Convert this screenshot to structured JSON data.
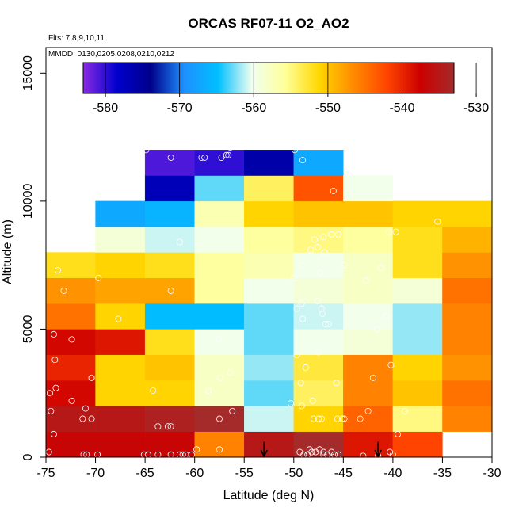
{
  "chart_data": {
    "type": "heatmap",
    "title": "ORCAS RF07-11 O2_AO2",
    "flights_note": "Flts: 7,8,9,10,11",
    "dates_note": "MMDD: 0130,0205,0208,0210,0212",
    "xlabel": "Latitude (deg N)",
    "ylabel": "Altitude (m)",
    "xlim": [
      -75,
      -30
    ],
    "ylim": [
      0,
      16000
    ],
    "xticks": [
      "-75",
      "-70",
      "-65",
      "-60",
      "-55",
      "-50",
      "-45",
      "-40",
      "-35",
      "-30"
    ],
    "yticks": [
      "0",
      "5000",
      "10000",
      "15000"
    ],
    "colorbar": {
      "min": -583,
      "max": -533,
      "ticks": [
        "-580",
        "-570",
        "-560",
        "-550",
        "-540",
        "-530"
      ],
      "colors": [
        "#8a2be2",
        "#0000cd",
        "#00008b",
        "#1e90ff",
        "#00bfff",
        "#f0fff0",
        "#ffff99",
        "#ffd700",
        "#ff8c00",
        "#ff4500",
        "#cc0000",
        "#a52a2a"
      ]
    },
    "cell_width_deg": 5,
    "cell_height_m": 1000,
    "cells": [
      {
        "lat": -75,
        "alt": 0,
        "value": -537
      },
      {
        "lat": -70,
        "alt": 0,
        "value": -537
      },
      {
        "lat": -65,
        "alt": 0,
        "value": -537
      },
      {
        "lat": -60,
        "alt": 0,
        "value": -546
      },
      {
        "lat": -55,
        "alt": 0,
        "value": -535
      },
      {
        "lat": -50,
        "alt": 0,
        "value": -530
      },
      {
        "lat": -45,
        "alt": 0,
        "value": -539
      },
      {
        "lat": -40,
        "alt": 0,
        "value": -542
      },
      {
        "lat": -75,
        "alt": 1000,
        "value": -535
      },
      {
        "lat": -70,
        "alt": 1000,
        "value": -535
      },
      {
        "lat": -65,
        "alt": 1000,
        "value": -534
      },
      {
        "lat": -60,
        "alt": 1000,
        "value": -531
      },
      {
        "lat": -55,
        "alt": 1000,
        "value": -561
      },
      {
        "lat": -50,
        "alt": 1000,
        "value": -551
      },
      {
        "lat": -45,
        "alt": 1000,
        "value": -544
      },
      {
        "lat": -40,
        "alt": 1000,
        "value": -555
      },
      {
        "lat": -35,
        "alt": 1000,
        "value": -546
      },
      {
        "lat": -75,
        "alt": 2000,
        "value": -538
      },
      {
        "lat": -70,
        "alt": 2000,
        "value": -551
      },
      {
        "lat": -65,
        "alt": 2000,
        "value": -551
      },
      {
        "lat": -60,
        "alt": 2000,
        "value": -558
      },
      {
        "lat": -55,
        "alt": 2000,
        "value": -563
      },
      {
        "lat": -50,
        "alt": 2000,
        "value": -554
      },
      {
        "lat": -45,
        "alt": 2000,
        "value": -546
      },
      {
        "lat": -40,
        "alt": 2000,
        "value": -550
      },
      {
        "lat": -35,
        "alt": 2000,
        "value": -545
      },
      {
        "lat": -75,
        "alt": 3000,
        "value": -540
      },
      {
        "lat": -70,
        "alt": 3000,
        "value": -551
      },
      {
        "lat": -65,
        "alt": 3000,
        "value": -550
      },
      {
        "lat": -60,
        "alt": 3000,
        "value": -558
      },
      {
        "lat": -55,
        "alt": 3000,
        "value": -562
      },
      {
        "lat": -50,
        "alt": 3000,
        "value": -553
      },
      {
        "lat": -45,
        "alt": 3000,
        "value": -546
      },
      {
        "lat": -40,
        "alt": 3000,
        "value": -551
      },
      {
        "lat": -35,
        "alt": 3000,
        "value": -547
      },
      {
        "lat": -75,
        "alt": 4000,
        "value": -538
      },
      {
        "lat": -70,
        "alt": 4000,
        "value": -539
      },
      {
        "lat": -65,
        "alt": 4000,
        "value": -552
      },
      {
        "lat": -60,
        "alt": 4000,
        "value": -560
      },
      {
        "lat": -55,
        "alt": 4000,
        "value": -563
      },
      {
        "lat": -50,
        "alt": 4000,
        "value": -560
      },
      {
        "lat": -45,
        "alt": 4000,
        "value": -559
      },
      {
        "lat": -40,
        "alt": 4000,
        "value": -562
      },
      {
        "lat": -35,
        "alt": 4000,
        "value": -546
      },
      {
        "lat": -75,
        "alt": 5000,
        "value": -545
      },
      {
        "lat": -70,
        "alt": 5000,
        "value": -551
      },
      {
        "lat": -65,
        "alt": 5000,
        "value": -565
      },
      {
        "lat": -60,
        "alt": 5000,
        "value": -565
      },
      {
        "lat": -55,
        "alt": 5000,
        "value": -563
      },
      {
        "lat": -50,
        "alt": 5000,
        "value": -561
      },
      {
        "lat": -45,
        "alt": 5000,
        "value": -560
      },
      {
        "lat": -40,
        "alt": 5000,
        "value": -562
      },
      {
        "lat": -35,
        "alt": 5000,
        "value": -546
      },
      {
        "lat": -75,
        "alt": 6000,
        "value": -547
      },
      {
        "lat": -70,
        "alt": 6000,
        "value": -548
      },
      {
        "lat": -65,
        "alt": 6000,
        "value": -548
      },
      {
        "lat": -60,
        "alt": 6000,
        "value": -556
      },
      {
        "lat": -55,
        "alt": 6000,
        "value": -560
      },
      {
        "lat": -50,
        "alt": 6000,
        "value": -559
      },
      {
        "lat": -45,
        "alt": 6000,
        "value": -558
      },
      {
        "lat": -40,
        "alt": 6000,
        "value": -559
      },
      {
        "lat": -35,
        "alt": 6000,
        "value": -545
      },
      {
        "lat": -75,
        "alt": 7000,
        "value": -552
      },
      {
        "lat": -70,
        "alt": 7000,
        "value": -551
      },
      {
        "lat": -65,
        "alt": 7000,
        "value": -552
      },
      {
        "lat": -60,
        "alt": 7000,
        "value": -556
      },
      {
        "lat": -55,
        "alt": 7000,
        "value": -557
      },
      {
        "lat": -50,
        "alt": 7000,
        "value": -560
      },
      {
        "lat": -45,
        "alt": 7000,
        "value": -558
      },
      {
        "lat": -40,
        "alt": 7000,
        "value": -552
      },
      {
        "lat": -35,
        "alt": 7000,
        "value": -547
      },
      {
        "lat": -70,
        "alt": 8000,
        "value": -559
      },
      {
        "lat": -65,
        "alt": 8000,
        "value": -561
      },
      {
        "lat": -60,
        "alt": 8000,
        "value": -560
      },
      {
        "lat": -55,
        "alt": 8000,
        "value": -556
      },
      {
        "lat": -50,
        "alt": 8000,
        "value": -555
      },
      {
        "lat": -45,
        "alt": 8000,
        "value": -556
      },
      {
        "lat": -40,
        "alt": 8000,
        "value": -552
      },
      {
        "lat": -35,
        "alt": 8000,
        "value": -549
      },
      {
        "lat": -70,
        "alt": 9000,
        "value": -567
      },
      {
        "lat": -65,
        "alt": 9000,
        "value": -566
      },
      {
        "lat": -60,
        "alt": 9000,
        "value": -557
      },
      {
        "lat": -55,
        "alt": 9000,
        "value": -551
      },
      {
        "lat": -50,
        "alt": 9000,
        "value": -550
      },
      {
        "lat": -45,
        "alt": 9000,
        "value": -550
      },
      {
        "lat": -40,
        "alt": 9000,
        "value": -551
      },
      {
        "lat": -35,
        "alt": 9000,
        "value": -551
      },
      {
        "lat": -65,
        "alt": 10000,
        "value": -577
      },
      {
        "lat": -60,
        "alt": 10000,
        "value": -563
      },
      {
        "lat": -55,
        "alt": 10000,
        "value": -554
      },
      {
        "lat": -50,
        "alt": 10000,
        "value": -543
      },
      {
        "lat": -45,
        "alt": 10000,
        "value": -560
      },
      {
        "lat": -65,
        "alt": 11000,
        "value": -581
      },
      {
        "lat": -60,
        "alt": 11000,
        "value": -580
      },
      {
        "lat": -55,
        "alt": 11000,
        "value": -576
      },
      {
        "lat": -50,
        "alt": 11000,
        "value": -567
      }
    ],
    "points": [
      {
        "lat": -74.7,
        "alt": 200
      },
      {
        "lat": -74.2,
        "alt": 900
      },
      {
        "lat": -74.5,
        "alt": 1800
      },
      {
        "lat": -74.6,
        "alt": 2500
      },
      {
        "lat": -74.0,
        "alt": 2700
      },
      {
        "lat": -72.4,
        "alt": 2200
      },
      {
        "lat": -71.3,
        "alt": 1500
      },
      {
        "lat": -70.4,
        "alt": 1500
      },
      {
        "lat": -71.0,
        "alt": 1900
      },
      {
        "lat": -70.4,
        "alt": 3100
      },
      {
        "lat": -71.2,
        "alt": 100
      },
      {
        "lat": -70.9,
        "alt": 100
      },
      {
        "lat": -69.8,
        "alt": 100
      },
      {
        "lat": -74.1,
        "alt": 3800
      },
      {
        "lat": -72.4,
        "alt": 4600
      },
      {
        "lat": -74.2,
        "alt": 4800
      },
      {
        "lat": -73.8,
        "alt": 7300
      },
      {
        "lat": -73.2,
        "alt": 6500
      },
      {
        "lat": -69.7,
        "alt": 7000
      },
      {
        "lat": -67.7,
        "alt": 5400
      },
      {
        "lat": -64.2,
        "alt": 2600
      },
      {
        "lat": -63.7,
        "alt": 1200
      },
      {
        "lat": -62.7,
        "alt": 1200
      },
      {
        "lat": -62.4,
        "alt": 1200
      },
      {
        "lat": -65.1,
        "alt": 100
      },
      {
        "lat": -64.7,
        "alt": 100
      },
      {
        "lat": -63.7,
        "alt": 100
      },
      {
        "lat": -62.4,
        "alt": 100
      },
      {
        "lat": -61.5,
        "alt": 100
      },
      {
        "lat": -61.2,
        "alt": 100
      },
      {
        "lat": -60.9,
        "alt": 100
      },
      {
        "lat": -60.3,
        "alt": 100
      },
      {
        "lat": -59.8,
        "alt": 300
      },
      {
        "lat": -57.5,
        "alt": 300
      },
      {
        "lat": -57.5,
        "alt": 1500
      },
      {
        "lat": -56.2,
        "alt": 1800
      },
      {
        "lat": -58.6,
        "alt": 2600
      },
      {
        "lat": -57.4,
        "alt": 3100
      },
      {
        "lat": -56.4,
        "alt": 3300
      },
      {
        "lat": -57.6,
        "alt": 4600
      },
      {
        "lat": -62.4,
        "alt": 6500
      },
      {
        "lat": -61.5,
        "alt": 8400
      },
      {
        "lat": -64.9,
        "alt": 12000
      },
      {
        "lat": -62.4,
        "alt": 11700
      },
      {
        "lat": -59.3,
        "alt": 11700
      },
      {
        "lat": -59.0,
        "alt": 11700
      },
      {
        "lat": -57.3,
        "alt": 11700
      },
      {
        "lat": -56.8,
        "alt": 11800
      },
      {
        "lat": -56.6,
        "alt": 11800
      },
      {
        "lat": -56.4,
        "alt": 12100
      },
      {
        "lat": -49.9,
        "alt": 12000
      },
      {
        "lat": -49.1,
        "alt": 11600
      },
      {
        "lat": -46.0,
        "alt": 10400
      },
      {
        "lat": -50.0,
        "alt": 7000
      },
      {
        "lat": -49.2,
        "alt": 7500
      },
      {
        "lat": -47.3,
        "alt": 7200
      },
      {
        "lat": -47.6,
        "alt": 8200
      },
      {
        "lat": -47.0,
        "alt": 8600
      },
      {
        "lat": -46.2,
        "alt": 8700
      },
      {
        "lat": -45.5,
        "alt": 8700
      },
      {
        "lat": -47.9,
        "alt": 8500
      },
      {
        "lat": -48.3,
        "alt": 8100
      },
      {
        "lat": -46.9,
        "alt": 8000
      },
      {
        "lat": -44.9,
        "alt": 7500
      },
      {
        "lat": -42.7,
        "alt": 6900
      },
      {
        "lat": -41.2,
        "alt": 7400
      },
      {
        "lat": -40.4,
        "alt": 8800
      },
      {
        "lat": -39.7,
        "alt": 8800
      },
      {
        "lat": -35.5,
        "alt": 9200
      },
      {
        "lat": -49.2,
        "alt": 6000
      },
      {
        "lat": -47.6,
        "alt": 6100
      },
      {
        "lat": -49.7,
        "alt": 5800
      },
      {
        "lat": -47.2,
        "alt": 5800
      },
      {
        "lat": -47.1,
        "alt": 5600
      },
      {
        "lat": -49.1,
        "alt": 5400
      },
      {
        "lat": -46.8,
        "alt": 5200
      },
      {
        "lat": -46.5,
        "alt": 5200
      },
      {
        "lat": -41.6,
        "alt": 5000
      },
      {
        "lat": -40.7,
        "alt": 5500
      },
      {
        "lat": -49.7,
        "alt": 4000
      },
      {
        "lat": -47.5,
        "alt": 4100
      },
      {
        "lat": -48.8,
        "alt": 3500
      },
      {
        "lat": -49.3,
        "alt": 2900
      },
      {
        "lat": -45.7,
        "alt": 2900
      },
      {
        "lat": -42.0,
        "alt": 3100
      },
      {
        "lat": -40.2,
        "alt": 3600
      },
      {
        "lat": -48.1,
        "alt": 2200
      },
      {
        "lat": -50.3,
        "alt": 2100
      },
      {
        "lat": -49.2,
        "alt": 2000
      },
      {
        "lat": -48.0,
        "alt": 1500
      },
      {
        "lat": -47.5,
        "alt": 1500
      },
      {
        "lat": -47.2,
        "alt": 1500
      },
      {
        "lat": -45.6,
        "alt": 1500
      },
      {
        "lat": -45.1,
        "alt": 1500
      },
      {
        "lat": -44.9,
        "alt": 1500
      },
      {
        "lat": -43.3,
        "alt": 1500
      },
      {
        "lat": -42.5,
        "alt": 1800
      },
      {
        "lat": -38.8,
        "alt": 1800
      },
      {
        "lat": -39.5,
        "alt": 900
      },
      {
        "lat": -40.3,
        "alt": 200
      },
      {
        "lat": -40.0,
        "alt": 100
      },
      {
        "lat": -49.4,
        "alt": 200
      },
      {
        "lat": -49.0,
        "alt": 100
      },
      {
        "lat": -48.6,
        "alt": 100
      },
      {
        "lat": -48.2,
        "alt": 200
      },
      {
        "lat": -47.8,
        "alt": 200
      },
      {
        "lat": -47.4,
        "alt": 300
      },
      {
        "lat": -47.0,
        "alt": 100
      },
      {
        "lat": -46.6,
        "alt": 100
      },
      {
        "lat": -46.2,
        "alt": 200
      },
      {
        "lat": -45.9,
        "alt": 100
      },
      {
        "lat": -45.5,
        "alt": 100
      },
      {
        "lat": -43.0,
        "alt": 50
      },
      {
        "lat": -41.5,
        "alt": 50
      },
      {
        "lat": -48.4,
        "alt": 300
      },
      {
        "lat": -47.0,
        "alt": 200
      }
    ],
    "arrows": [
      {
        "lat": -53,
        "alt_top": 600
      },
      {
        "lat": -41.5,
        "alt_top": 600
      }
    ]
  }
}
